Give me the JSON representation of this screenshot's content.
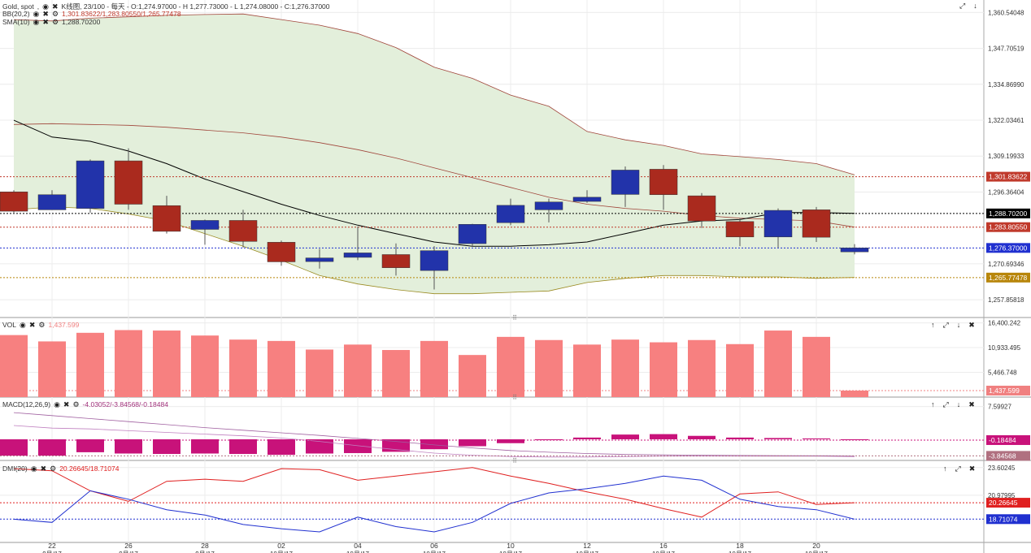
{
  "header": {
    "title": "Gold, spot",
    "info": "K线图, 23/100 - 每天 - O:1,274.97000 - H 1,277.73000 - L 1,274.08000 - C:1,276.37000",
    "bb_label": "BB(20,2)",
    "bb_values": "1,301.83622/1,283.80550/1,265.77478",
    "sma_label": "SMA(10)",
    "sma_value": "1,288.70200"
  },
  "panes": {
    "vol": {
      "label": "VOL",
      "value": "1,437.599"
    },
    "macd": {
      "label": "MACD(12,26,9)",
      "value": "-4.03052/-3.84568/-0.18484"
    },
    "dmi": {
      "label": "DMI(20)",
      "value": "20.26645/18.71074"
    }
  },
  "icons": [
    "eye-icon",
    "close-icon",
    "gear-icon",
    "maximize-icon",
    "arrow-up-icon",
    "arrow-down-icon"
  ],
  "colors": {
    "bull": "#2233aa",
    "bear": "#aa2a1e",
    "band_fill": "#e3efdb",
    "volume": "#f78080",
    "macd_hist": "#c8127a",
    "dmi_plus": "#e02020",
    "dmi_minus": "#2030d0"
  },
  "chart_data": [
    {
      "type": "candlestick",
      "title": "Gold, spot",
      "ylim": [
        1251.5,
        1365
      ],
      "y_ticks": [
        "1,360.54048",
        "1,347.70519",
        "1,334.86990",
        "1,322.03461",
        "1,309.19933",
        "1,296.36404",
        "1,270.69346",
        "1,257.85818"
      ],
      "y_tick_values": [
        1360.54,
        1347.71,
        1334.87,
        1322.03,
        1309.2,
        1296.36,
        1270.69,
        1257.86
      ],
      "candles": [
        {
          "o": 1296.4,
          "h": 1297.0,
          "l": 1289.0,
          "c": 1289.5
        },
        {
          "o": 1290.0,
          "h": 1297.0,
          "l": 1290.0,
          "c": 1295.4
        },
        {
          "o": 1290.5,
          "h": 1308.0,
          "l": 1289.0,
          "c": 1307.5
        },
        {
          "o": 1307.5,
          "h": 1312.0,
          "l": 1290.0,
          "c": 1292.0
        },
        {
          "o": 1291.5,
          "h": 1295.0,
          "l": 1281.5,
          "c": 1282.3
        },
        {
          "o": 1283.0,
          "h": 1286.5,
          "l": 1277.5,
          "c": 1286.2
        },
        {
          "o": 1286.2,
          "h": 1290.0,
          "l": 1276.5,
          "c": 1278.7
        },
        {
          "o": 1278.4,
          "h": 1279.0,
          "l": 1270.0,
          "c": 1271.4
        },
        {
          "o": 1271.5,
          "h": 1276.0,
          "l": 1269.0,
          "c": 1272.8
        },
        {
          "o": 1273.0,
          "h": 1284.0,
          "l": 1272.0,
          "c": 1274.6
        },
        {
          "o": 1274.0,
          "h": 1278.0,
          "l": 1266.5,
          "c": 1269.3
        },
        {
          "o": 1268.3,
          "h": 1277.0,
          "l": 1261.5,
          "c": 1275.4
        },
        {
          "o": 1277.9,
          "h": 1285.0,
          "l": 1277.0,
          "c": 1284.8
        },
        {
          "o": 1285.4,
          "h": 1294.0,
          "l": 1284.5,
          "c": 1291.6
        },
        {
          "o": 1290.0,
          "h": 1294.0,
          "l": 1285.5,
          "c": 1292.8
        },
        {
          "o": 1293.0,
          "h": 1297.0,
          "l": 1292.5,
          "c": 1294.5
        },
        {
          "o": 1295.5,
          "h": 1305.5,
          "l": 1291.0,
          "c": 1304.2
        },
        {
          "o": 1304.5,
          "h": 1306.0,
          "l": 1290.0,
          "c": 1295.4
        },
        {
          "o": 1295.0,
          "h": 1296.0,
          "l": 1283.5,
          "c": 1286.0
        },
        {
          "o": 1285.8,
          "h": 1287.0,
          "l": 1277.0,
          "c": 1280.3
        },
        {
          "o": 1280.3,
          "h": 1290.5,
          "l": 1276.5,
          "c": 1289.8
        },
        {
          "o": 1290.0,
          "h": 1291.0,
          "l": 1278.5,
          "c": 1280.2
        },
        {
          "o": 1274.97,
          "h": 1277.73,
          "l": 1274.08,
          "c": 1276.37
        }
      ],
      "bb_upper": [
        1358.0,
        1357.5,
        1358.5,
        1359.0,
        1359.5,
        1359.8,
        1360.0,
        1358.0,
        1356.0,
        1353.0,
        1348.0,
        1341.0,
        1337.0,
        1331.0,
        1327.0,
        1318.0,
        1315.0,
        1313.0,
        1310.0,
        1309.0,
        1308.0,
        1306.5,
        1302.5
      ],
      "bb_middle": [
        1320.5,
        1320.8,
        1320.5,
        1320.2,
        1319.5,
        1318.5,
        1317.5,
        1316.0,
        1314.0,
        1311.5,
        1308.5,
        1305.0,
        1301.5,
        1298.0,
        1294.5,
        1292.0,
        1290.5,
        1289.5,
        1288.0,
        1287.0,
        1286.5,
        1286.0,
        1283.8
      ],
      "bb_lower": [
        1290.0,
        1291.0,
        1290.5,
        1288.5,
        1286.0,
        1281.5,
        1277.0,
        1272.0,
        1266.5,
        1263.5,
        1261.5,
        1260.0,
        1260.0,
        1260.5,
        1261.0,
        1264.0,
        1265.5,
        1266.5,
        1266.5,
        1266.0,
        1266.0,
        1265.5,
        1265.8
      ],
      "sma": [
        1322.0,
        1316.0,
        1314.5,
        1311.0,
        1306.5,
        1301.0,
        1296.5,
        1292.0,
        1288.0,
        1284.5,
        1281.5,
        1278.5,
        1277.0,
        1277.0,
        1277.5,
        1278.5,
        1281.5,
        1284.5,
        1286.0,
        1286.5,
        1289.0,
        1289.0,
        1288.7
      ],
      "price_labels": [
        {
          "text": "1,301.83622",
          "value": 1301.83622,
          "color": "#c0392b"
        },
        {
          "text": "1,288.70200",
          "value": 1288.702,
          "color": "#000000"
        },
        {
          "text": "1,283.80550",
          "value": 1283.8055,
          "color": "#c0392b"
        },
        {
          "text": "1,276.37000",
          "value": 1276.37,
          "color": "#2030d0"
        },
        {
          "text": "1,265.77478",
          "value": 1265.77478,
          "color": "#b8860b"
        }
      ]
    },
    {
      "type": "bar",
      "title": "VOL",
      "ylim": [
        0,
        17400
      ],
      "y_ticks": [
        "16,400.242",
        "10,933.495",
        "5,466.748"
      ],
      "y_tick_values": [
        16400.242,
        10933.495,
        5466.748
      ],
      "values": [
        13700,
        12300,
        14200,
        14800,
        14700,
        13600,
        12700,
        12400,
        10500,
        11600,
        10400,
        12400,
        9300,
        13300,
        12600,
        11600,
        12700,
        12100,
        12600,
        11700,
        14700,
        13300,
        1437.599
      ],
      "price_labels": [
        {
          "text": "1,437.599",
          "value": 1437.599,
          "color": "#f08080"
        }
      ]
    },
    {
      "type": "bar",
      "title": "MACD(12,26,9)",
      "ylim": [
        -4.9,
        9.6
      ],
      "y_ticks": [
        "7.59927"
      ],
      "y_tick_values": [
        7.59927
      ],
      "histogram": [
        -3.8,
        -3.8,
        -3.0,
        -3.3,
        -3.4,
        -3.3,
        -3.4,
        -3.6,
        -3.3,
        -3.2,
        -2.9,
        -2.3,
        -1.6,
        -0.9,
        -0.2,
        0.4,
        1.1,
        1.2,
        0.8,
        0.4,
        0.3,
        0.2,
        -0.18484
      ],
      "macd_line": [
        3.2,
        2.6,
        2.4,
        2.0,
        1.6,
        1.2,
        0.8,
        0.3,
        -0.5,
        -1.5,
        -2.4,
        -3.2,
        -3.7,
        -4.0,
        -4.1,
        -4.1,
        -4.0,
        -3.9,
        -3.9,
        -3.9,
        -3.9,
        -3.9,
        -4.03052
      ],
      "signal_line": [
        6.2,
        5.5,
        4.8,
        4.1,
        3.4,
        2.7,
        2.1,
        1.5,
        0.9,
        0.2,
        -0.5,
        -1.3,
        -2.0,
        -2.6,
        -3.0,
        -3.3,
        -3.5,
        -3.6,
        -3.7,
        -3.75,
        -3.8,
        -3.82,
        -3.84568
      ],
      "price_labels": [
        {
          "text": "-0.18484",
          "value": -0.18484,
          "color": "#c8127a"
        },
        {
          "text": "-3.84568",
          "value": -3.84568,
          "color": "#b07080"
        }
      ]
    },
    {
      "type": "line",
      "title": "DMI(20)",
      "ylim": [
        16.5,
        24.2
      ],
      "y_ticks": [
        "23.60245",
        "20.97995"
      ],
      "y_tick_values": [
        23.60245,
        20.97995
      ],
      "series": [
        {
          "name": "",
          "values": [
            23.5,
            23.3,
            21.4,
            20.4,
            22.3,
            22.5,
            22.3,
            23.5,
            23.4,
            22.4,
            22.8,
            23.2,
            23.6,
            22.8,
            22.1,
            21.3,
            20.6,
            19.7,
            18.9,
            21.1,
            21.3,
            20.1,
            20.26645
          ]
        },
        {
          "name": "",
          "values": [
            18.7,
            18.4,
            21.4,
            20.6,
            19.6,
            19.1,
            18.2,
            17.8,
            17.5,
            18.9,
            18.0,
            17.5,
            18.4,
            20.2,
            21.2,
            21.6,
            22.1,
            22.8,
            22.4,
            20.6,
            19.9,
            19.6,
            18.71074
          ]
        }
      ],
      "price_labels": [
        {
          "text": "20.26645",
          "value": 20.26645,
          "color": "#e02020"
        },
        {
          "text": "18.71074",
          "value": 18.71074,
          "color": "#2030d0"
        }
      ]
    }
  ],
  "x_axis": {
    "day_labels": [
      "22",
      "26",
      "28",
      "02",
      "04",
      "06",
      "10",
      "12",
      "16",
      "18",
      "20"
    ],
    "day_indices": [
      1,
      3,
      5,
      7,
      9,
      11,
      13,
      15,
      17,
      19,
      21
    ],
    "month_labels": [
      "9月/17",
      "9月/17",
      "9月/17",
      "10月/17",
      "10月/17",
      "10月/17",
      "10月/17",
      "10月/17",
      "10月/17",
      "10月/17",
      "10月/17"
    ]
  }
}
